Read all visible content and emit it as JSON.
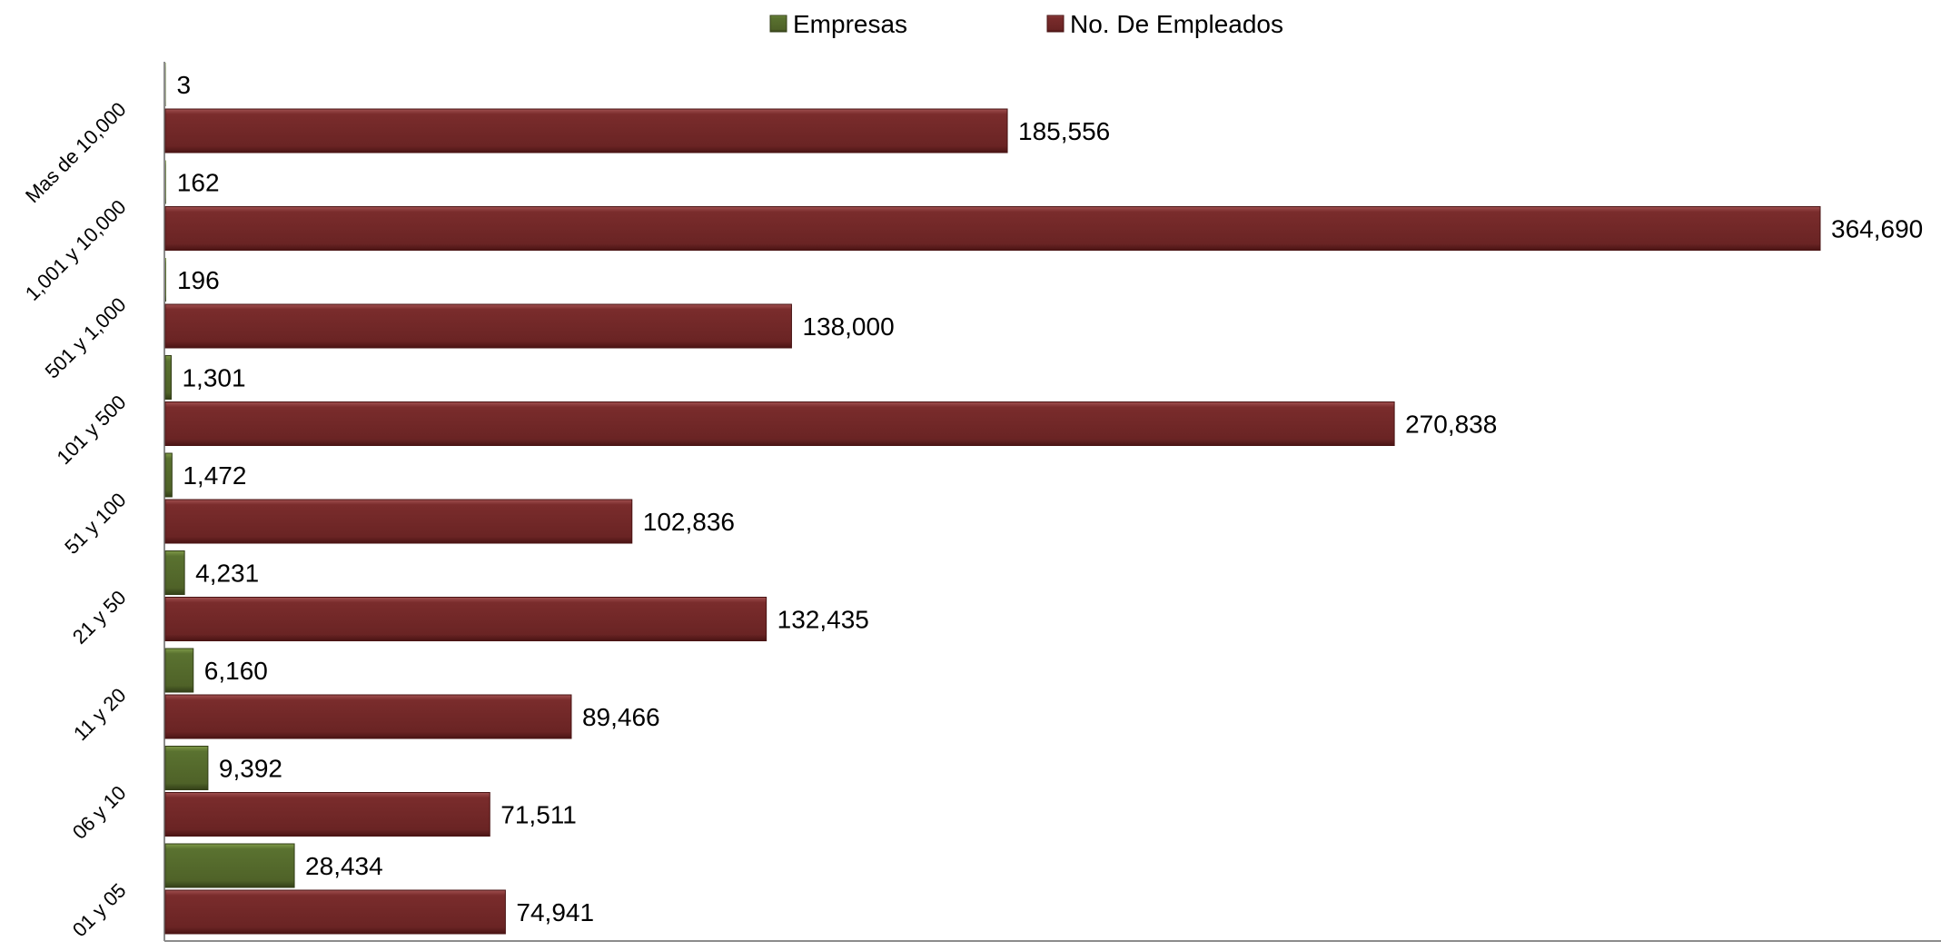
{
  "chart_data": {
    "type": "bar",
    "orientation": "horizontal",
    "categories": [
      "Mas de 10,000",
      "1,001 y 10,000",
      "501 y 1,000",
      "101 y 500",
      "51 y 100",
      "21 y 50",
      "11 y 20",
      "06 y 10",
      "01 y 05"
    ],
    "series": [
      {
        "name": "Empresas",
        "color": "#4f6228",
        "values": [
          3,
          162,
          196,
          1301,
          1472,
          4231,
          6160,
          9392,
          28434
        ],
        "labels": [
          "3",
          "162",
          "196",
          "1,301",
          "1,472",
          "4,231",
          "6,160",
          "9,392",
          "28,434"
        ]
      },
      {
        "name": "No. De Empleados",
        "color": "#6b2525",
        "values": [
          185556,
          364690,
          138000,
          270838,
          102836,
          132435,
          89466,
          71511,
          74941
        ],
        "labels": [
          "185,556",
          "364,690",
          "138,000",
          "270,838",
          "102,836",
          "132,435",
          "89,466",
          "71,511",
          "74,941"
        ]
      }
    ],
    "xlim": [
      0,
      390000
    ],
    "legend_position": "top-center",
    "grid": false
  }
}
